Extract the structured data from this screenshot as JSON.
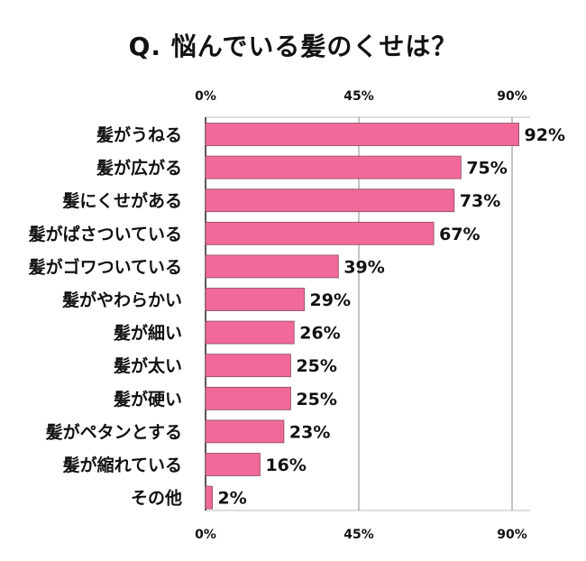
{
  "chart_data": {
    "type": "bar",
    "orientation": "horizontal",
    "title": "Q.  悩んでいる髪のくせは？",
    "categories": [
      "髪がうねる",
      "髪が広がる",
      "髪にくせがある",
      "髪がぱさついている",
      "髪がゴワついている",
      "髪がやわらかい",
      "髪が細い",
      "髪が太い",
      "髪が硬い",
      "髪がペタンとする",
      "髪が縮れている",
      "その他"
    ],
    "values": [
      92,
      75,
      73,
      67,
      39,
      29,
      26,
      25,
      25,
      23,
      16,
      2
    ],
    "value_labels": [
      "92%",
      "75%",
      "73%",
      "67%",
      "39%",
      "29%",
      "26%",
      "25%",
      "25%",
      "23%",
      "16%",
      "2%"
    ],
    "xlim": [
      0,
      90
    ],
    "x_ticks": [
      0,
      45,
      90
    ],
    "x_tick_labels": [
      "0%",
      "45%",
      "90%"
    ],
    "grid": true,
    "bar_color": "#F0699A",
    "bar_edge_color": "#8A4A5E"
  }
}
